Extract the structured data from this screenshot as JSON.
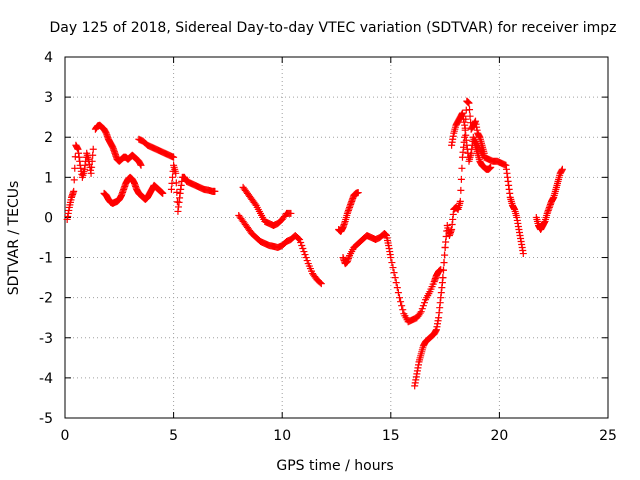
{
  "chart_data": {
    "type": "scatter",
    "title": "Day 125 of 2018, Sidereal Day-to-day VTEC variation (SDTVAR) for receiver impz",
    "xlabel": "GPS time / hours",
    "ylabel": "SDTVAR / TECUs",
    "xlim": [
      0,
      25
    ],
    "ylim": [
      -5,
      4
    ],
    "xticks": [
      0,
      5,
      10,
      15,
      20,
      25
    ],
    "yticks": [
      -5,
      -4,
      -3,
      -2,
      -1,
      0,
      1,
      2,
      3,
      4
    ],
    "grid": true,
    "marker": "+",
    "series_color": "#ff0000",
    "series": [
      {
        "x": [
          0.1,
          0.2,
          0.3,
          0.4,
          0.5,
          0.6,
          0.7,
          0.8,
          0.9,
          1.0,
          1.1,
          1.2,
          1.3
        ],
        "y": [
          -0.05,
          0.25,
          0.5,
          0.65,
          1.8,
          1.7,
          1.3,
          1.0,
          1.2,
          1.6,
          1.4,
          1.1,
          1.7
        ]
      },
      {
        "x": [
          1.4,
          1.5,
          1.6,
          1.7,
          1.8,
          1.9,
          2.0,
          2.1,
          2.2,
          2.3,
          2.4,
          2.5,
          2.6,
          2.7,
          2.8,
          2.9,
          3.0,
          3.1,
          3.2,
          3.3,
          3.4,
          3.5
        ],
        "y": [
          2.2,
          2.28,
          2.3,
          2.25,
          2.2,
          2.1,
          1.95,
          1.85,
          1.75,
          1.6,
          1.45,
          1.4,
          1.45,
          1.5,
          1.5,
          1.45,
          1.5,
          1.55,
          1.5,
          1.45,
          1.4,
          1.3
        ]
      },
      {
        "x": [
          1.8,
          1.9,
          2.0,
          2.1,
          2.2,
          2.3,
          2.4,
          2.5,
          2.6,
          2.7,
          2.8,
          2.9,
          3.0,
          3.1,
          3.2,
          3.3,
          3.4,
          3.5,
          3.6,
          3.7,
          3.8,
          3.9,
          4.0,
          4.1,
          4.2,
          4.3,
          4.4,
          4.5
        ],
        "y": [
          0.6,
          0.55,
          0.45,
          0.38,
          0.35,
          0.38,
          0.4,
          0.45,
          0.55,
          0.7,
          0.85,
          0.95,
          1.0,
          0.95,
          0.85,
          0.7,
          0.6,
          0.55,
          0.5,
          0.45,
          0.5,
          0.6,
          0.7,
          0.8,
          0.75,
          0.7,
          0.65,
          0.6
        ]
      },
      {
        "x": [
          3.4,
          3.6,
          3.8,
          4.0,
          4.2,
          4.4,
          4.6,
          4.8,
          5.0
        ],
        "y": [
          1.95,
          1.9,
          1.8,
          1.75,
          1.7,
          1.65,
          1.6,
          1.55,
          1.5
        ]
      },
      {
        "x": [
          4.9,
          5.0,
          5.1,
          5.2,
          5.3,
          5.4,
          5.5,
          5.6,
          5.8,
          6.0,
          6.2,
          6.4,
          6.6,
          6.8,
          6.9
        ],
        "y": [
          0.7,
          1.3,
          1.1,
          0.15,
          0.6,
          1.0,
          1.0,
          0.9,
          0.85,
          0.8,
          0.75,
          0.7,
          0.68,
          0.65,
          0.65
        ]
      },
      {
        "x": [
          8.2,
          8.4,
          8.6,
          8.8,
          9.0,
          9.2,
          9.4,
          9.6,
          9.8,
          10.0,
          10.2,
          10.4
        ],
        "y": [
          0.75,
          0.6,
          0.45,
          0.3,
          0.1,
          -0.1,
          -0.15,
          -0.2,
          -0.15,
          -0.05,
          0.1,
          0.1
        ]
      },
      {
        "x": [
          8.0,
          8.2,
          8.4,
          8.6,
          8.8,
          9.0,
          9.2,
          9.4,
          9.6,
          9.8,
          10.0,
          10.2,
          10.4,
          10.6,
          10.8,
          11.0,
          11.2,
          11.4,
          11.6,
          11.8
        ],
        "y": [
          0.05,
          -0.1,
          -0.25,
          -0.4,
          -0.5,
          -0.6,
          -0.65,
          -0.7,
          -0.72,
          -0.75,
          -0.7,
          -0.6,
          -0.55,
          -0.45,
          -0.55,
          -0.85,
          -1.15,
          -1.4,
          -1.55,
          -1.65
        ]
      },
      {
        "x": [
          12.6,
          12.7,
          12.8,
          12.9,
          13.0,
          13.1,
          13.2,
          13.3,
          13.4,
          13.5
        ],
        "y": [
          -0.3,
          -0.35,
          -0.25,
          -0.1,
          0.1,
          0.25,
          0.4,
          0.55,
          0.6,
          0.62
        ]
      },
      {
        "x": [
          12.8,
          12.9,
          13.0,
          13.1,
          13.3,
          13.5,
          13.7,
          13.9,
          14.1,
          14.3,
          14.5,
          14.7,
          14.8,
          14.9,
          15.0,
          15.2,
          15.4,
          15.6,
          15.8,
          16.0,
          16.2,
          16.4,
          16.6,
          16.8,
          17.0,
          17.1,
          17.2,
          17.3
        ],
        "y": [
          -1.0,
          -1.15,
          -1.1,
          -0.95,
          -0.75,
          -0.65,
          -0.55,
          -0.45,
          -0.5,
          -0.55,
          -0.5,
          -0.4,
          -0.45,
          -0.7,
          -1.0,
          -1.5,
          -2.0,
          -2.4,
          -2.6,
          -2.55,
          -2.5,
          -2.35,
          -2.05,
          -1.85,
          -1.6,
          -1.45,
          -1.35,
          -1.3
        ]
      },
      {
        "x": [
          16.1,
          16.2,
          16.3,
          16.4,
          16.5,
          16.6,
          16.7,
          16.8,
          16.9,
          17.0,
          17.1,
          17.2,
          17.3,
          17.4,
          17.5
        ],
        "y": [
          -4.2,
          -3.9,
          -3.6,
          -3.4,
          -3.2,
          -3.1,
          -3.05,
          -3.0,
          -2.95,
          -2.9,
          -2.8,
          -2.5,
          -2.0,
          -1.5,
          -0.75
        ]
      },
      {
        "x": [
          17.4,
          17.5,
          17.6,
          17.7,
          17.8,
          17.9,
          18.0,
          18.1,
          18.2,
          18.3,
          18.4,
          18.5,
          18.6,
          18.7,
          18.8,
          18.9,
          19.0,
          19.1,
          19.2,
          19.3
        ],
        "y": [
          -1.5,
          -0.75,
          -0.2,
          -0.45,
          -0.3,
          0.2,
          0.25,
          0.2,
          0.4,
          1.5,
          2.0,
          2.9,
          2.85,
          2.2,
          2.3,
          2.4,
          2.1,
          2.0,
          1.8,
          1.6
        ]
      },
      {
        "x": [
          17.8,
          17.9,
          18.0,
          18.1,
          18.2,
          18.3,
          18.4,
          18.5,
          18.6,
          18.7,
          18.8,
          18.9,
          19.0,
          19.1,
          19.2,
          19.3,
          19.4,
          19.5,
          19.6
        ],
        "y": [
          1.8,
          2.1,
          2.3,
          2.4,
          2.5,
          2.6,
          2.3,
          1.8,
          1.4,
          1.6,
          2.0,
          1.8,
          1.6,
          1.4,
          1.3,
          1.25,
          1.2,
          1.2,
          1.25
        ]
      },
      {
        "x": [
          18.9,
          19.1,
          19.3,
          19.5,
          19.7,
          19.9,
          20.1,
          20.3,
          20.4,
          20.5,
          20.6,
          20.7,
          20.8,
          20.9,
          21.0,
          21.1
        ],
        "y": [
          1.9,
          1.7,
          1.5,
          1.45,
          1.4,
          1.4,
          1.35,
          1.3,
          0.9,
          0.5,
          0.3,
          0.2,
          0.0,
          -0.3,
          -0.6,
          -0.9
        ]
      },
      {
        "x": [
          21.7,
          21.8,
          21.9,
          22.0,
          22.1,
          22.2,
          22.3,
          22.4,
          22.5,
          22.6,
          22.7,
          22.8,
          22.9
        ],
        "y": [
          0.0,
          -0.2,
          -0.3,
          -0.2,
          -0.1,
          0.1,
          0.25,
          0.4,
          0.5,
          0.7,
          0.9,
          1.1,
          1.2
        ]
      }
    ]
  }
}
